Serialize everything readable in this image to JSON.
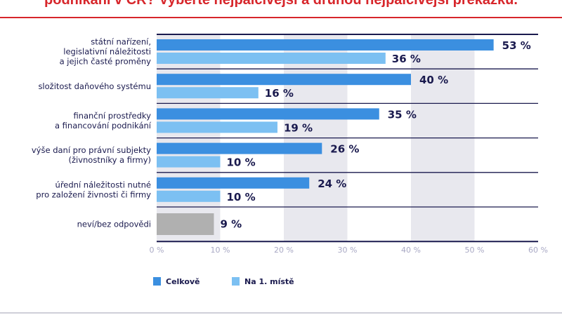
{
  "title": "podnikání v ČR? Vyberte nejpalčivější a druhou nejpalčivější překážku.",
  "colors": {
    "celkove": "#3b8fe0",
    "prvni": "#7cc0f2",
    "nevi": "#b0b0b0",
    "text": "#1a1a4e",
    "title": "#d7262b",
    "band": "#e8e8ee"
  },
  "chart_data": {
    "type": "bar",
    "orientation": "horizontal",
    "categories": [
      [
        "státní nařízení,",
        "legislativní náležitosti",
        "a jejich časté proměny"
      ],
      [
        "složitost daňového systému"
      ],
      [
        "finanční prostředky",
        "a financování podnikání"
      ],
      [
        "výše daní pro právní subjekty",
        "(živnostníky a firmy)"
      ],
      [
        "úřední náležitosti nutné",
        "pro založení živnosti či firmy"
      ],
      [
        "neví/bez odpovědi"
      ]
    ],
    "series": [
      {
        "name": "Celkově",
        "values": [
          53,
          40,
          35,
          26,
          24,
          9
        ]
      },
      {
        "name": "Na 1. místě",
        "values": [
          36,
          16,
          19,
          10,
          10,
          null
        ]
      }
    ],
    "value_suffix": " %",
    "xlim": [
      0,
      60
    ],
    "xticks": [
      "0 %",
      "10 %",
      "20 %",
      "30 %",
      "40 %",
      "50 %",
      "60 %"
    ],
    "grid": "alternating bands",
    "legend": "bottom-left"
  }
}
